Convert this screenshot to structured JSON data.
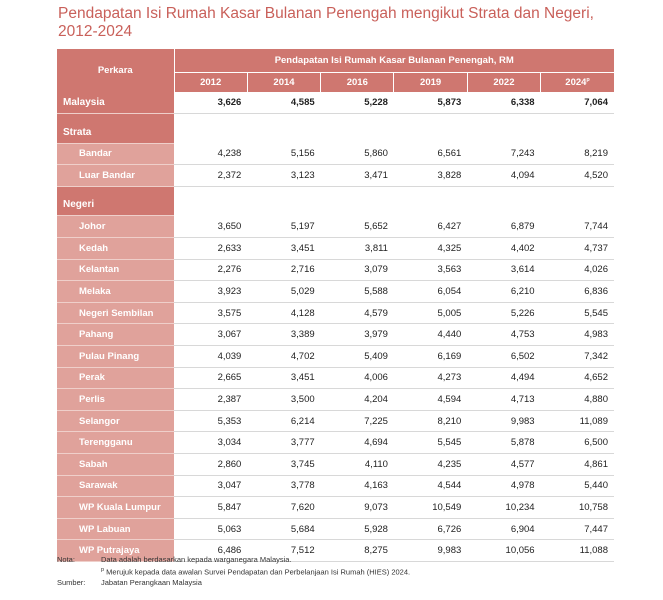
{
  "title": "Pendapatan Isi Rumah Kasar Bulanan Penengah mengikut Strata dan Negeri, 2012-2024",
  "header": {
    "perkara": "Perkara",
    "group": "Pendapatan Isi Rumah Kasar Bulanan Penengah, RM",
    "years": [
      "2012",
      "2014",
      "2016",
      "2019",
      "2022",
      "2024"
    ],
    "last_year_suffix": "p"
  },
  "malaysia": {
    "label": "Malaysia",
    "values": [
      "3,626",
      "4,585",
      "5,228",
      "5,873",
      "6,338",
      "7,064"
    ]
  },
  "strata": {
    "label": "Strata",
    "rows": [
      {
        "label": "Bandar",
        "values": [
          "4,238",
          "5,156",
          "5,860",
          "6,561",
          "7,243",
          "8,219"
        ]
      },
      {
        "label": "Luar Bandar",
        "values": [
          "2,372",
          "3,123",
          "3,471",
          "3,828",
          "4,094",
          "4,520"
        ]
      }
    ]
  },
  "negeri": {
    "label": "Negeri",
    "rows": [
      {
        "label": "Johor",
        "values": [
          "3,650",
          "5,197",
          "5,652",
          "6,427",
          "6,879",
          "7,744"
        ]
      },
      {
        "label": "Kedah",
        "values": [
          "2,633",
          "3,451",
          "3,811",
          "4,325",
          "4,402",
          "4,737"
        ]
      },
      {
        "label": "Kelantan",
        "values": [
          "2,276",
          "2,716",
          "3,079",
          "3,563",
          "3,614",
          "4,026"
        ]
      },
      {
        "label": "Melaka",
        "values": [
          "3,923",
          "5,029",
          "5,588",
          "6,054",
          "6,210",
          "6,836"
        ]
      },
      {
        "label": "Negeri Sembilan",
        "values": [
          "3,575",
          "4,128",
          "4,579",
          "5,005",
          "5,226",
          "5,545"
        ]
      },
      {
        "label": "Pahang",
        "values": [
          "3,067",
          "3,389",
          "3,979",
          "4,440",
          "4,753",
          "4,983"
        ]
      },
      {
        "label": "Pulau Pinang",
        "values": [
          "4,039",
          "4,702",
          "5,409",
          "6,169",
          "6,502",
          "7,342"
        ]
      },
      {
        "label": "Perak",
        "values": [
          "2,665",
          "3,451",
          "4,006",
          "4,273",
          "4,494",
          "4,652"
        ]
      },
      {
        "label": "Perlis",
        "values": [
          "2,387",
          "3,500",
          "4,204",
          "4,594",
          "4,713",
          "4,880"
        ]
      },
      {
        "label": "Selangor",
        "values": [
          "5,353",
          "6,214",
          "7,225",
          "8,210",
          "9,983",
          "11,089"
        ]
      },
      {
        "label": "Terengganu",
        "values": [
          "3,034",
          "3,777",
          "4,694",
          "5,545",
          "5,878",
          "6,500"
        ]
      },
      {
        "label": "Sabah",
        "values": [
          "2,860",
          "3,745",
          "4,110",
          "4,235",
          "4,577",
          "4,861"
        ]
      },
      {
        "label": "Sarawak",
        "values": [
          "3,047",
          "3,778",
          "4,163",
          "4,544",
          "4,978",
          "5,440"
        ]
      },
      {
        "label": "WP Kuala Lumpur",
        "values": [
          "5,847",
          "7,620",
          "9,073",
          "10,549",
          "10,234",
          "10,758"
        ]
      },
      {
        "label": "WP Labuan",
        "values": [
          "5,063",
          "5,684",
          "5,928",
          "6,726",
          "6,904",
          "7,447"
        ]
      },
      {
        "label": "WP Putrajaya",
        "values": [
          "6,486",
          "7,512",
          "8,275",
          "9,983",
          "10,056",
          "11,088"
        ]
      }
    ]
  },
  "notes": {
    "nota_label": "Nota:",
    "nota_text": "Data adalah berdasarkan kepada warganegara Malaysia.",
    "p_mark": "p",
    "p_text": "Merujuk kepada data awalan Survei Pendapatan dan Perbelanjaan Isi Rumah (HIES) 2024.",
    "sumber_label": "Sumber:",
    "sumber_text": "Jabatan Perangkaan Malaysia"
  }
}
